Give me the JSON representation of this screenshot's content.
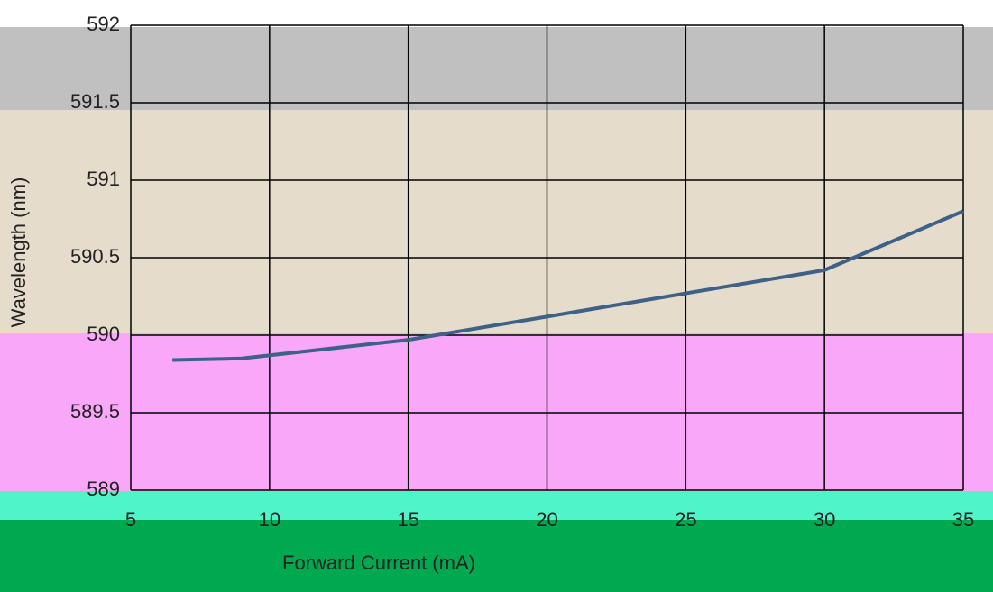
{
  "chart_data": {
    "type": "line",
    "x_label": "Forward Current (mA)",
    "y_label": "Wavelength (nm)",
    "x": [
      6.5,
      9,
      15,
      24,
      30,
      35
    ],
    "series": [
      {
        "name": "Wavelength",
        "color": "#3d6187",
        "values": [
          589.84,
          589.85,
          589.97,
          590.24,
          590.42,
          590.8
        ]
      }
    ],
    "xlim": [
      5,
      35
    ],
    "xticks": [
      5,
      10,
      15,
      20,
      25,
      30,
      35
    ],
    "ylim": [
      589,
      592
    ],
    "yticks": [
      589,
      589.5,
      590,
      590.5,
      591,
      591.5,
      592
    ],
    "grid": true
  }
}
